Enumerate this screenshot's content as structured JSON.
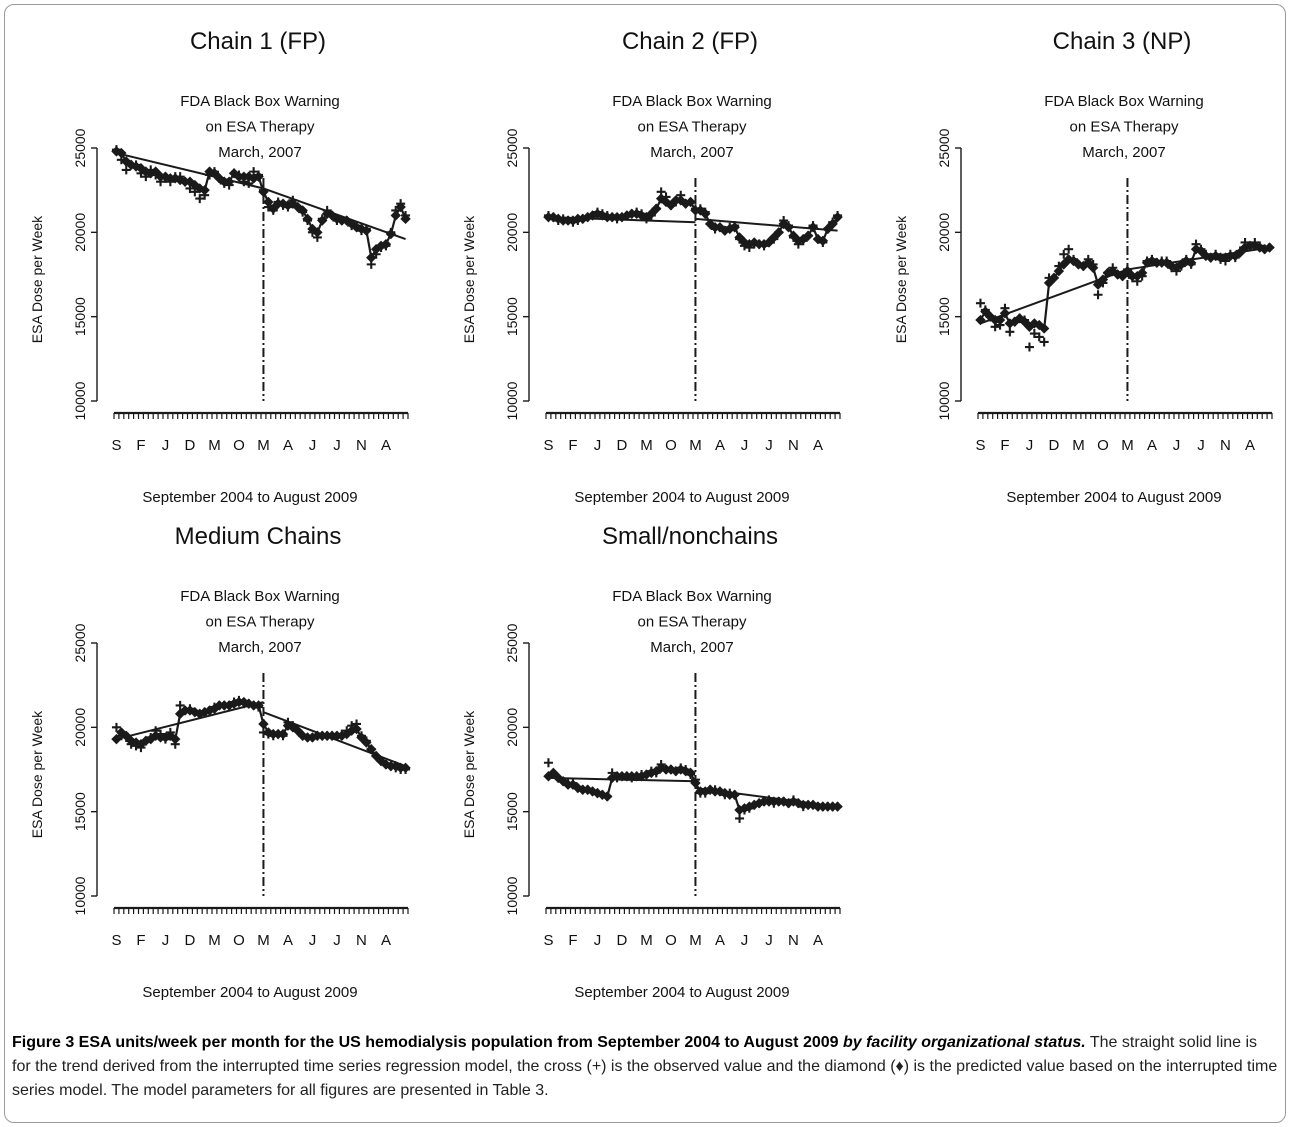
{
  "colors": {
    "ink": "#1a1a1a",
    "frame": "#9a9a9a"
  },
  "shared": {
    "annotation": [
      "FDA Black Box Warning",
      "on ESA Therapy",
      "March, 2007"
    ],
    "ylabel": "ESA Dose per Week",
    "xlabel": "September 2004 to August 2009",
    "y_ticks": [
      10000,
      15000,
      20000,
      25000
    ],
    "x_tick_labels": [
      "S",
      "F",
      "J",
      "D",
      "M",
      "O",
      "M",
      "A",
      "J",
      "J",
      "N",
      "A"
    ]
  },
  "chart_data": [
    {
      "type": "scatter",
      "title": "Chain 1 (FP)",
      "xlabel": "September 2004 to August 2009",
      "ylabel": "ESA Dose per Week",
      "ylim": [
        10000,
        25000
      ],
      "x_count": 60,
      "intervention_index": 30,
      "x_tick_labels": [
        "S",
        "F",
        "J",
        "D",
        "M",
        "O",
        "M",
        "A",
        "J",
        "J",
        "N",
        "A"
      ],
      "annotation": [
        "FDA Black Box Warning",
        "on ESA Therapy",
        "March, 2007"
      ],
      "series": [
        {
          "name": "trend",
          "segments": [
            {
              "x": [
                0,
                30
              ],
              "y": [
                24700,
                22600
              ]
            },
            {
              "x": [
                30,
                59
              ],
              "y": [
                22600,
                19600
              ]
            }
          ]
        },
        {
          "name": "observed (+)",
          "values": [
            24900,
            24300,
            23700,
            24000,
            24000,
            23500,
            23300,
            23700,
            23400,
            23000,
            23200,
            23000,
            23300,
            23300,
            23000,
            22600,
            22400,
            22000,
            22200,
            23400,
            23600,
            23200,
            22900,
            22800,
            23500,
            23400,
            23000,
            22900,
            23600,
            23400,
            22500,
            21500,
            21300,
            21800,
            21600,
            21500,
            21900,
            21500,
            21200,
            20700,
            20000,
            19700,
            20800,
            21300,
            21000,
            20700,
            20700,
            20700,
            20400,
            20400,
            20100,
            20200,
            18100,
            18700,
            19100,
            19200,
            20000,
            21300,
            21700,
            21000
          ]
        },
        {
          "name": "predicted (♦)",
          "values": [
            24800,
            24700,
            24200,
            24000,
            23900,
            23800,
            23600,
            23500,
            23600,
            23300,
            23300,
            23200,
            23200,
            23100,
            23000,
            23000,
            22800,
            22600,
            22500,
            23600,
            23500,
            23200,
            23000,
            23000,
            23500,
            23300,
            23300,
            23300,
            23200,
            23300,
            22400,
            21800,
            21400,
            21700,
            21700,
            21600,
            21700,
            21500,
            21300,
            20800,
            20200,
            20000,
            20700,
            21100,
            21000,
            20800,
            20700,
            20700,
            20500,
            20300,
            20200,
            20100,
            18500,
            19000,
            19200,
            19300,
            19900,
            21000,
            21500,
            20800
          ]
        }
      ]
    },
    {
      "type": "scatter",
      "title": "Chain 2 (FP)",
      "xlabel": "September 2004 to August 2009",
      "ylabel": "ESA Dose per Week",
      "ylim": [
        10000,
        25000
      ],
      "x_count": 60,
      "intervention_index": 30,
      "x_tick_labels": [
        "S",
        "F",
        "J",
        "D",
        "M",
        "O",
        "M",
        "A",
        "J",
        "J",
        "N",
        "A"
      ],
      "annotation": [
        "FDA Black Box Warning",
        "on ESA Therapy",
        "March, 2007"
      ],
      "series": [
        {
          "name": "trend",
          "segments": [
            {
              "x": [
                0,
                30
              ],
              "y": [
                20900,
                20600
              ]
            },
            {
              "x": [
                30,
                59
              ],
              "y": [
                20800,
                20100
              ]
            }
          ]
        },
        {
          "name": "observed (+)",
          "values": [
            21000,
            20900,
            20700,
            20800,
            20700,
            20600,
            20700,
            20800,
            20900,
            21000,
            21200,
            21100,
            21000,
            20900,
            20800,
            20900,
            21000,
            21100,
            21200,
            21100,
            20800,
            21000,
            21400,
            22400,
            22100,
            21600,
            21800,
            22200,
            21700,
            21800,
            21400,
            21400,
            21200,
            20500,
            20200,
            20300,
            20100,
            20300,
            20400,
            19600,
            19200,
            19100,
            19300,
            19300,
            19200,
            19400,
            19600,
            20000,
            20700,
            20400,
            19700,
            19300,
            19500,
            19800,
            20400,
            19600,
            19400,
            20200,
            20600,
            21000
          ]
        },
        {
          "name": "predicted (♦)",
          "values": [
            20900,
            20900,
            20800,
            20700,
            20700,
            20700,
            20800,
            20800,
            20900,
            21000,
            21100,
            21000,
            20900,
            20900,
            20900,
            20900,
            21000,
            21100,
            21100,
            21000,
            20900,
            21100,
            21400,
            22000,
            21800,
            21600,
            21900,
            21900,
            21700,
            21800,
            21300,
            21300,
            21100,
            20500,
            20300,
            20300,
            20100,
            20200,
            20300,
            19700,
            19400,
            19300,
            19400,
            19300,
            19300,
            19400,
            19700,
            20000,
            20500,
            20300,
            19800,
            19500,
            19600,
            19800,
            20300,
            19600,
            19500,
            20200,
            20500,
            20900
          ]
        }
      ]
    },
    {
      "type": "scatter",
      "title": "Chain 3 (NP)",
      "xlabel": "September 2004 to August 2009",
      "ylabel": "ESA Dose per Week",
      "ylim": [
        10000,
        25000
      ],
      "x_count": 60,
      "intervention_index": 30,
      "x_tick_labels": [
        "S",
        "F",
        "J",
        "D",
        "M",
        "O",
        "M",
        "A",
        "J",
        "J",
        "N",
        "A"
      ],
      "annotation": [
        "FDA Black Box Warning",
        "on ESA Therapy",
        "March, 2007"
      ],
      "series": [
        {
          "name": "trend",
          "segments": [
            {
              "x": [
                0,
                30
              ],
              "y": [
                14600,
                17800
              ]
            },
            {
              "x": [
                30,
                59
              ],
              "y": [
                17800,
                19100
              ]
            }
          ]
        },
        {
          "name": "observed (+)",
          "values": [
            15800,
            15400,
            15000,
            14400,
            14500,
            15500,
            14100,
            14700,
            14900,
            14800,
            13200,
            14000,
            13800,
            13500,
            17300,
            17300,
            18000,
            18700,
            19000,
            18400,
            18100,
            18000,
            18400,
            18100,
            16300,
            17000,
            17600,
            17900,
            17500,
            17400,
            17800,
            17300,
            17100,
            17400,
            18300,
            18400,
            18200,
            18300,
            18300,
            17900,
            17700,
            18000,
            18400,
            18100,
            19300,
            19000,
            18700,
            18500,
            18700,
            18400,
            18300,
            18700,
            18500,
            18900,
            19400,
            19200,
            19400,
            19200,
            19000,
            19100
          ]
        },
        {
          "name": "predicted (♦)",
          "values": [
            14800,
            15300,
            15000,
            14800,
            14800,
            15200,
            14600,
            14700,
            14900,
            14700,
            14400,
            14600,
            14500,
            14300,
            17000,
            17300,
            17700,
            18100,
            18400,
            18300,
            18100,
            18000,
            18200,
            17900,
            16900,
            17200,
            17600,
            17700,
            17500,
            17400,
            17700,
            17400,
            17400,
            17600,
            18200,
            18300,
            18200,
            18200,
            18200,
            18000,
            17900,
            18100,
            18300,
            18200,
            19000,
            18900,
            18600,
            18500,
            18600,
            18500,
            18500,
            18600,
            18600,
            18800,
            19100,
            19200,
            19200,
            19100,
            19000,
            19100
          ]
        }
      ]
    },
    {
      "type": "scatter",
      "title": "Medium Chains",
      "xlabel": "September 2004 to August 2009",
      "ylabel": "ESA Dose per Week",
      "ylim": [
        10000,
        25000
      ],
      "x_count": 60,
      "intervention_index": 30,
      "x_tick_labels": [
        "S",
        "F",
        "J",
        "D",
        "M",
        "O",
        "M",
        "A",
        "J",
        "J",
        "N",
        "A"
      ],
      "annotation": [
        "FDA Black Box Warning",
        "on ESA Therapy",
        "March, 2007"
      ],
      "series": [
        {
          "name": "trend",
          "segments": [
            {
              "x": [
                0,
                30
              ],
              "y": [
                19300,
                21500
              ]
            },
            {
              "x": [
                30,
                59
              ],
              "y": [
                20900,
                17700
              ]
            }
          ]
        },
        {
          "name": "observed (+)",
          "values": [
            20000,
            19500,
            19400,
            19000,
            18900,
            18800,
            19200,
            19400,
            19800,
            19600,
            19300,
            19700,
            19000,
            21300,
            21000,
            21100,
            20900,
            20800,
            20900,
            21000,
            21200,
            21300,
            21300,
            21300,
            21500,
            21600,
            21400,
            21400,
            21300,
            21200,
            19700,
            19600,
            19500,
            19600,
            19500,
            20300,
            20100,
            19800,
            19500,
            19400,
            19400,
            19500,
            19500,
            19500,
            19500,
            19500,
            19600,
            19800,
            20100,
            20200,
            19500,
            19200,
            18700,
            18300,
            18000,
            17800,
            17700,
            17600,
            17500,
            17500
          ]
        },
        {
          "name": "predicted (♦)",
          "values": [
            19300,
            19700,
            19500,
            19200,
            19100,
            19000,
            19200,
            19300,
            19500,
            19400,
            19400,
            19500,
            19300,
            20800,
            21000,
            21000,
            20900,
            20800,
            20900,
            21000,
            21100,
            21300,
            21300,
            21300,
            21400,
            21500,
            21500,
            21400,
            21300,
            21300,
            20200,
            19700,
            19600,
            19600,
            19600,
            20100,
            20000,
            19800,
            19500,
            19400,
            19400,
            19500,
            19500,
            19500,
            19500,
            19500,
            19500,
            19600,
            19800,
            19900,
            19400,
            19100,
            18700,
            18300,
            18000,
            17800,
            17700,
            17700,
            17600,
            17600
          ]
        }
      ]
    },
    {
      "type": "scatter",
      "title": "Small/nonchains",
      "xlabel": "September 2004 to August 2009",
      "ylabel": "ESA Dose per Week",
      "ylim": [
        10000,
        25000
      ],
      "x_count": 60,
      "intervention_index": 30,
      "x_tick_labels": [
        "S",
        "F",
        "J",
        "D",
        "M",
        "O",
        "M",
        "A",
        "J",
        "J",
        "N",
        "A"
      ],
      "annotation": [
        "FDA Black Box Warning",
        "on ESA Therapy",
        "March, 2007"
      ],
      "series": [
        {
          "name": "trend",
          "segments": [
            {
              "x": [
                0,
                30
              ],
              "y": [
                17000,
                16800
              ]
            },
            {
              "x": [
                30,
                59
              ],
              "y": [
                16400,
                15300
              ]
            }
          ]
        },
        {
          "name": "observed (+)",
          "values": [
            17900,
            17200,
            17000,
            16800,
            16700,
            16700,
            16400,
            16300,
            16300,
            16200,
            16100,
            16000,
            15900,
            17300,
            17000,
            17100,
            17100,
            17000,
            17100,
            17200,
            17200,
            17400,
            17300,
            17800,
            17500,
            17500,
            17400,
            17600,
            17500,
            17200,
            16900,
            16100,
            16100,
            16300,
            16300,
            16200,
            16000,
            16100,
            16000,
            14600,
            15100,
            15200,
            15400,
            15500,
            15600,
            15700,
            15500,
            15600,
            15600,
            15500,
            15700,
            15500,
            15300,
            15400,
            15400,
            15300,
            15300,
            15300,
            15300,
            15300
          ]
        },
        {
          "name": "predicted (♦)",
          "values": [
            17100,
            17300,
            17000,
            16800,
            16600,
            16600,
            16400,
            16300,
            16300,
            16200,
            16100,
            16000,
            15900,
            17000,
            17100,
            17100,
            17100,
            17100,
            17100,
            17100,
            17200,
            17300,
            17400,
            17600,
            17500,
            17500,
            17400,
            17500,
            17400,
            17300,
            16700,
            16200,
            16200,
            16300,
            16200,
            16200,
            16100,
            16000,
            16000,
            15100,
            15200,
            15300,
            15400,
            15500,
            15600,
            15600,
            15600,
            15600,
            15600,
            15500,
            15600,
            15500,
            15400,
            15400,
            15400,
            15300,
            15300,
            15300,
            15300,
            15300
          ]
        }
      ]
    }
  ],
  "caption": {
    "bold": "Figure 3 ESA units/week per month for the US hemodialysis population from September 2004 to August 2009",
    "bold_italic": " by facility organizational status.",
    "text": " The straight solid line is for the trend derived from the interrupted time series regression model, the cross (+) is the observed value and the diamond (♦) is the predicted value based on the interrupted time series model. The model parameters for all figures are presented in Table 3."
  }
}
